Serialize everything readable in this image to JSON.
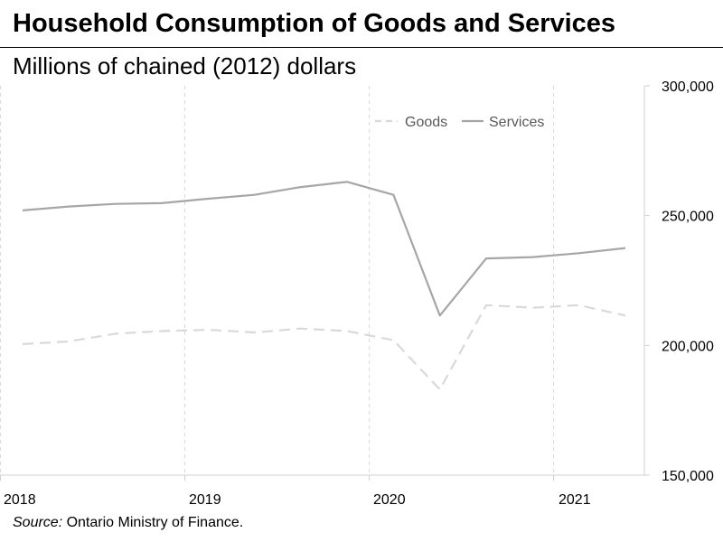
{
  "title": "Household Consumption of Goods and Services",
  "subtitle": "Millions of chained (2012) dollars",
  "source_label": "Source:",
  "source_text": " Ontario Ministry of Finance.",
  "chart_data": {
    "type": "line",
    "title": "Household Consumption of Goods and Services",
    "ylabel": "Millions of chained (2012) dollars",
    "xlabel": "",
    "x": [
      "2018Q1",
      "2018Q2",
      "2018Q3",
      "2018Q4",
      "2019Q1",
      "2019Q2",
      "2019Q3",
      "2019Q4",
      "2020Q1",
      "2020Q2",
      "2020Q3",
      "2020Q4",
      "2021Q1",
      "2021Q2"
    ],
    "x_tick_labels": [
      "2018",
      "2019",
      "2020",
      "2021"
    ],
    "ylim": [
      150000,
      300000
    ],
    "y_ticks": [
      150000,
      200000,
      250000,
      300000
    ],
    "y_tick_labels": [
      "150,000",
      "200,000",
      "250,000",
      "300,000"
    ],
    "y_axis_side": "right",
    "grid": "vertical dashed at year boundaries",
    "legend_position": "top-right",
    "series": [
      {
        "name": "Goods",
        "style": "dashed",
        "color": "#d9d9d9",
        "values": [
          200500,
          201500,
          204500,
          205500,
          206000,
          205000,
          206500,
          205500,
          202000,
          183000,
          215500,
          214500,
          215500,
          211500
        ]
      },
      {
        "name": "Services",
        "style": "solid",
        "color": "#a6a6a6",
        "values": [
          252000,
          253500,
          254500,
          254800,
          256500,
          258000,
          261000,
          263000,
          258000,
          211500,
          233500,
          234000,
          235500,
          237500
        ]
      }
    ]
  },
  "colors": {
    "goods": "#d9d9d9",
    "services": "#a6a6a6",
    "axis": "#d0d0d0",
    "text": "#000000"
  }
}
